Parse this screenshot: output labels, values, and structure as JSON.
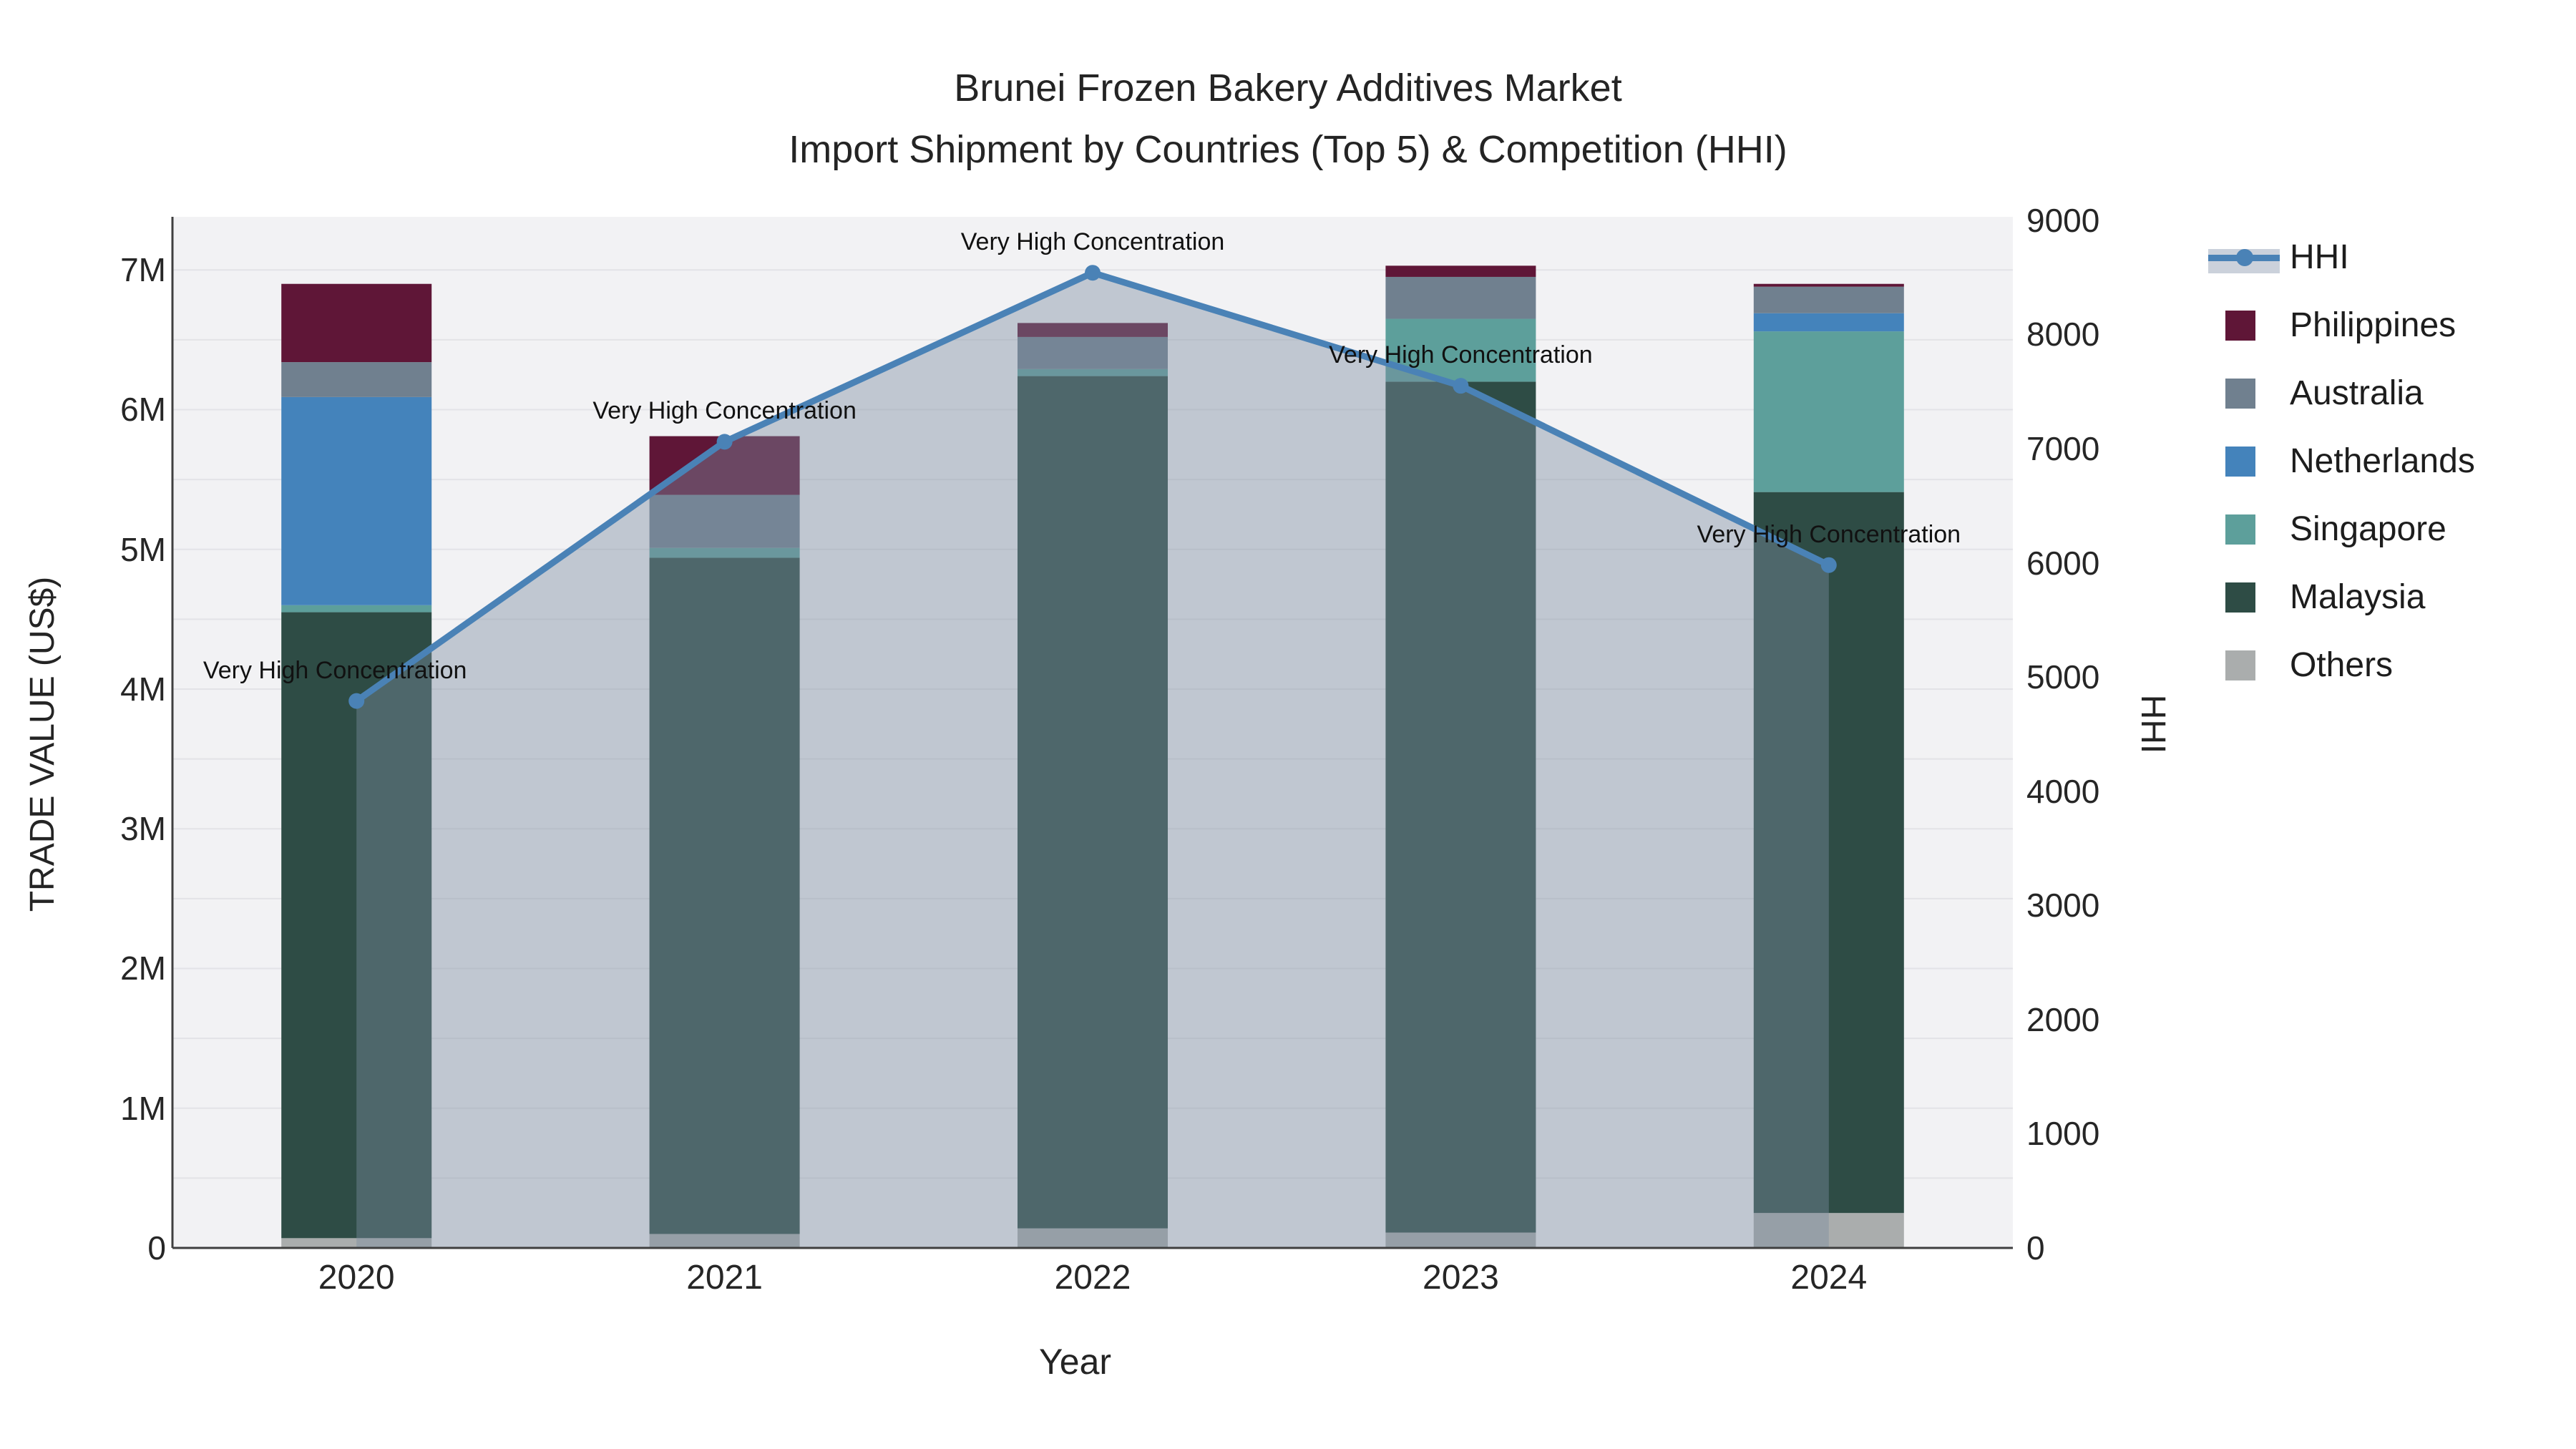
{
  "title": {
    "line1": "Brunei Frozen Bakery Additives Market",
    "line2": "Import Shipment by Countries (Top 5) & Competition (HHI)"
  },
  "axes": {
    "x_title": "Year",
    "y_left_title": "TRADE VALUE (US$)",
    "y_right_title": "HHI",
    "y_left_ticks": [
      {
        "v": 0,
        "label": "0"
      },
      {
        "v": 1,
        "label": "1M"
      },
      {
        "v": 2,
        "label": "2M"
      },
      {
        "v": 3,
        "label": "3M"
      },
      {
        "v": 4,
        "label": "4M"
      },
      {
        "v": 5,
        "label": "5M"
      },
      {
        "v": 6,
        "label": "6M"
      },
      {
        "v": 7,
        "label": "7M"
      }
    ],
    "y_right_ticks": [
      {
        "v": 0,
        "label": "0"
      },
      {
        "v": 1000,
        "label": "1000"
      },
      {
        "v": 2000,
        "label": "2000"
      },
      {
        "v": 3000,
        "label": "3000"
      },
      {
        "v": 4000,
        "label": "4000"
      },
      {
        "v": 5000,
        "label": "5000"
      },
      {
        "v": 6000,
        "label": "6000"
      },
      {
        "v": 7000,
        "label": "7000"
      },
      {
        "v": 8000,
        "label": "8000"
      },
      {
        "v": 9000,
        "label": "9000"
      }
    ],
    "x_ticks": [
      "2020",
      "2021",
      "2022",
      "2023",
      "2024"
    ]
  },
  "chart_data": {
    "type": "bar",
    "subtype": "stacked bars with secondary-axis line",
    "categories": [
      2020,
      2021,
      2022,
      2023,
      2024
    ],
    "series": [
      {
        "name": "Others",
        "color": "#aaadad",
        "values": [
          0.07,
          0.1,
          0.14,
          0.11,
          0.25
        ]
      },
      {
        "name": "Malaysia",
        "color": "#2e4c45",
        "values": [
          4.48,
          4.84,
          6.1,
          6.09,
          5.16
        ]
      },
      {
        "name": "Singapore",
        "color": "#5d9f9b",
        "values": [
          0.05,
          0.07,
          0.05,
          0.45,
          1.15
        ]
      },
      {
        "name": "Netherlands",
        "color": "#4483bb",
        "values": [
          1.49,
          0.0,
          0.0,
          0.0,
          0.13
        ]
      },
      {
        "name": "Australia",
        "color": "#70808f",
        "values": [
          0.25,
          0.38,
          0.23,
          0.3,
          0.19
        ]
      },
      {
        "name": "Philippines",
        "color": "#5f1637",
        "values": [
          0.56,
          0.42,
          0.1,
          0.08,
          0.02
        ]
      }
    ],
    "line_series": {
      "name": "HHI",
      "axis": "right",
      "color": "#4a82b6",
      "fill_color": "rgba(125,140,160,0.42)",
      "values": [
        4790,
        7060,
        8540,
        7550,
        5980
      ]
    },
    "annotations": [
      {
        "year": 2020,
        "text": "Very High Concentration",
        "dx": -30
      },
      {
        "year": 2021,
        "text": "Very High Concentration",
        "dx": 0
      },
      {
        "year": 2022,
        "text": "Very High Concentration",
        "dx": 0
      },
      {
        "year": 2023,
        "text": "Very High Concentration",
        "dx": 0
      },
      {
        "year": 2024,
        "text": "Very High Concentration",
        "dx": 0
      }
    ],
    "legend": [
      "HHI",
      "Philippines",
      "Australia",
      "Netherlands",
      "Singapore",
      "Malaysia",
      "Others"
    ],
    "xlabel": "Year",
    "ylabel": "TRADE VALUE (US$)",
    "y2label": "HHI",
    "ylim": [
      0,
      7.38
    ],
    "y2lim": [
      0,
      9030
    ],
    "grid": "horizontal, every 0.5M",
    "legend_position": "right",
    "plot_bg": "#f2f2f4",
    "grid_color": "#e3e3e7",
    "axis_line_color": "#3f3f3f"
  }
}
